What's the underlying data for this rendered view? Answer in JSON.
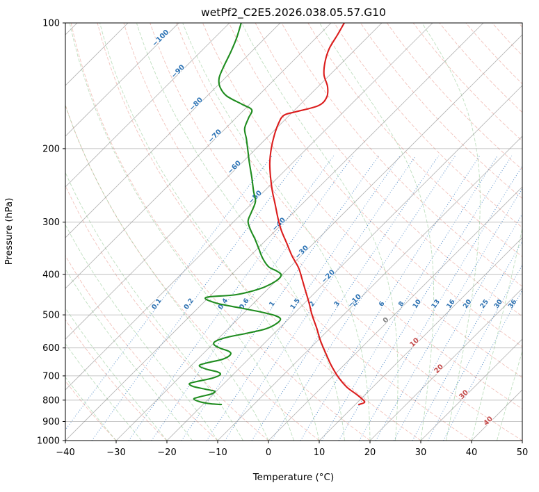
{
  "chart_data": {
    "type": "line",
    "chart_kind": "skew-t-log-p-sounding",
    "title": "wetPf2_C2E5.2026.038.05.57.G10",
    "xlabel": "Temperature (°C)",
    "ylabel": "Pressure (hPa)",
    "xlim": [
      -40,
      50
    ],
    "pressure_lim": [
      1000,
      100
    ],
    "x_ticks": [
      -40,
      -30,
      -20,
      -10,
      0,
      10,
      20,
      30,
      40,
      50
    ],
    "y_ticks": [
      100,
      200,
      300,
      400,
      500,
      600,
      700,
      800,
      900,
      1000
    ],
    "grid": true,
    "skew_isotherm_angle_deg": 45,
    "isotherm_step_c": 10,
    "isotherm_labels_c": [
      -100,
      -90,
      -80,
      -70,
      -60,
      -50,
      -40,
      -30,
      -20,
      -10,
      0,
      10,
      20,
      30,
      40
    ],
    "mixing_ratio_lines_g_kg": [
      0.1,
      0.2,
      0.4,
      0.6,
      1,
      1.5,
      2,
      3,
      4,
      6,
      8,
      10,
      13,
      16,
      20,
      25,
      30,
      36
    ],
    "dry_adiabats_c": [
      -30,
      -20,
      -10,
      0,
      10,
      20,
      30,
      40,
      50,
      60,
      70,
      80,
      90,
      100,
      110,
      120,
      130,
      140,
      150,
      160,
      170,
      180,
      190,
      200,
      210
    ],
    "moist_adiabats_c": [
      -30,
      -25,
      -20,
      -15,
      -10,
      -5,
      0,
      5,
      10,
      15,
      20,
      25,
      30,
      35,
      40,
      45
    ],
    "colors": {
      "grid": "#8c8c8c",
      "dry_adiabat": "#e2796b",
      "moist_adiabat": "#7fbf7f",
      "mixing_ratio": "#4a86c5",
      "mixing_ratio_label": "#2c70b0",
      "label_cold": "#2e74b5",
      "label_zero": "#808080",
      "label_warm": "#c44e4e",
      "temperature": "#db1d1d",
      "dewpoint": "#1f8c1f"
    },
    "series": [
      {
        "name": "Temperature",
        "color": "#db1d1d",
        "points_p_hpa_t_c": [
          [
            100,
            -67.4
          ],
          [
            106.7,
            -66.4
          ],
          [
            115.2,
            -65.3
          ],
          [
            124.4,
            -63.4
          ],
          [
            133.3,
            -61.1
          ],
          [
            142.2,
            -58.1
          ],
          [
            150.7,
            -56.2
          ],
          [
            157.8,
            -56.2
          ],
          [
            163.3,
            -59.5
          ],
          [
            166.5,
            -61.1
          ],
          [
            174.3,
            -60.5
          ],
          [
            186,
            -59
          ],
          [
            200,
            -57
          ],
          [
            216.8,
            -54.4
          ],
          [
            234.1,
            -51.5
          ],
          [
            252.8,
            -48.4
          ],
          [
            272.8,
            -45.1
          ],
          [
            294.6,
            -41.8
          ],
          [
            314.5,
            -38.8
          ],
          [
            336.9,
            -35.3
          ],
          [
            361,
            -31.8
          ],
          [
            385.2,
            -28.2
          ],
          [
            407.9,
            -25.5
          ],
          [
            435.4,
            -22.5
          ],
          [
            466.5,
            -19.3
          ],
          [
            500,
            -16.2
          ],
          [
            537.6,
            -12.7
          ],
          [
            575.9,
            -9.5
          ],
          [
            617,
            -6
          ],
          [
            658.8,
            -2.6
          ],
          [
            703,
            1.1
          ],
          [
            744.7,
            4.9
          ],
          [
            776.6,
            8.4
          ],
          [
            797.9,
            10.5
          ],
          [
            810.3,
            11.4
          ],
          [
            819.6,
            10.7
          ]
        ]
      },
      {
        "name": "Dewpoint",
        "color": "#1f8c1f",
        "points_p_hpa_t_c": [
          [
            100,
            -87.7
          ],
          [
            108.8,
            -85.6
          ],
          [
            117.5,
            -84
          ],
          [
            126.8,
            -82.6
          ],
          [
            135.4,
            -81.2
          ],
          [
            142.2,
            -79.3
          ],
          [
            149.5,
            -76.2
          ],
          [
            156.6,
            -71.5
          ],
          [
            161.4,
            -68.5
          ],
          [
            169,
            -67.5
          ],
          [
            179,
            -66.2
          ],
          [
            189.6,
            -63.8
          ],
          [
            200.2,
            -61.6
          ],
          [
            216.8,
            -58.4
          ],
          [
            234.1,
            -55.2
          ],
          [
            252.8,
            -52.1
          ],
          [
            267.6,
            -49.7
          ],
          [
            283.6,
            -48.4
          ],
          [
            298,
            -47.3
          ],
          [
            312.1,
            -45.2
          ],
          [
            330.4,
            -42.2
          ],
          [
            347.3,
            -39.7
          ],
          [
            366.5,
            -37
          ],
          [
            383.7,
            -34.2
          ],
          [
            392.6,
            -31.8
          ],
          [
            401.8,
            -30.1
          ],
          [
            415.7,
            -30
          ],
          [
            432.1,
            -31.5
          ],
          [
            447.2,
            -35.1
          ],
          [
            454.2,
            -40.5
          ],
          [
            468.3,
            -37.5
          ],
          [
            481.1,
            -31.8
          ],
          [
            492.3,
            -26.8
          ],
          [
            501.8,
            -23.4
          ],
          [
            511.6,
            -21.6
          ],
          [
            525.4,
            -21.5
          ],
          [
            539.7,
            -22.5
          ],
          [
            552.3,
            -25.1
          ],
          [
            565.2,
            -28.4
          ],
          [
            578.3,
            -30
          ],
          [
            589.5,
            -29.6
          ],
          [
            600.9,
            -27.7
          ],
          [
            612.5,
            -25.2
          ],
          [
            624.3,
            -24.4
          ],
          [
            638.9,
            -25.1
          ],
          [
            651.3,
            -27.4
          ],
          [
            661.4,
            -28.4
          ],
          [
            674.2,
            -26.4
          ],
          [
            684.7,
            -23.6
          ],
          [
            695.2,
            -22.5
          ],
          [
            708.8,
            -23.4
          ],
          [
            722.4,
            -25.8
          ],
          [
            730.6,
            -26.8
          ],
          [
            742,
            -25.5
          ],
          [
            753.4,
            -22.5
          ],
          [
            762.1,
            -20.3
          ],
          [
            773.8,
            -20.5
          ],
          [
            785.8,
            -22.2
          ],
          [
            794.9,
            -22.9
          ],
          [
            807.1,
            -21.2
          ],
          [
            816.4,
            -18.6
          ],
          [
            819.6,
            -16.4
          ]
        ]
      }
    ]
  }
}
